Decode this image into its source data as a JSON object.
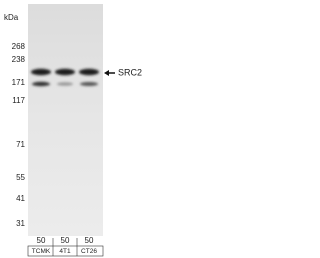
{
  "kda_label": "kDa",
  "markers": [
    "268",
    "238",
    "171",
    "117",
    "71",
    "55",
    "41",
    "31"
  ],
  "target": "SRC2",
  "lanes": [
    {
      "amount": "50",
      "name": "TCMK"
    },
    {
      "amount": "50",
      "name": "4T1"
    },
    {
      "amount": "50",
      "name": "CT26"
    }
  ]
}
